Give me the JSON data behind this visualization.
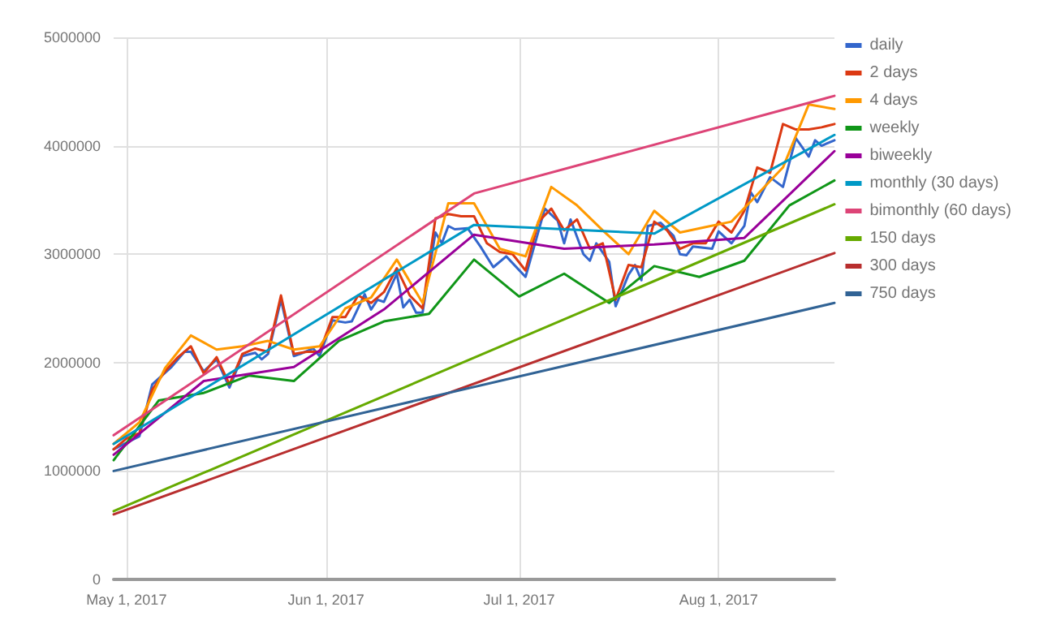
{
  "chart_data": {
    "type": "line",
    "xlim": [
      "2017-04-29",
      "2017-08-19"
    ],
    "xticks": [
      {
        "value": "2017-05-01",
        "label": "May 1, 2017"
      },
      {
        "value": "2017-06-01",
        "label": "Jun 1, 2017"
      },
      {
        "value": "2017-07-01",
        "label": "Jul 1, 2017"
      },
      {
        "value": "2017-08-01",
        "label": "Aug 1, 2017"
      }
    ],
    "ylim": [
      0,
      5000000
    ],
    "yticks": [
      0,
      1000000,
      2000000,
      3000000,
      4000000,
      5000000
    ],
    "grid": true,
    "legend": "right",
    "marker": "none",
    "line_style": "solid",
    "series": [
      {
        "name": "daily",
        "color": "#3366cc",
        "x": [
          "2017-04-29",
          "2017-05-03",
          "2017-05-05",
          "2017-05-08",
          "2017-05-10",
          "2017-05-11",
          "2017-05-13",
          "2017-05-15",
          "2017-05-17",
          "2017-05-19",
          "2017-05-21",
          "2017-05-22",
          "2017-05-23",
          "2017-05-25",
          "2017-05-27",
          "2017-05-28",
          "2017-05-30",
          "2017-05-31",
          "2017-06-02",
          "2017-06-04",
          "2017-06-05",
          "2017-06-07",
          "2017-06-08",
          "2017-06-09",
          "2017-06-10",
          "2017-06-12",
          "2017-06-13",
          "2017-06-14",
          "2017-06-15",
          "2017-06-16",
          "2017-06-18",
          "2017-06-19",
          "2017-06-20",
          "2017-06-21",
          "2017-06-23",
          "2017-06-25",
          "2017-06-27",
          "2017-06-29",
          "2017-07-02",
          "2017-07-05",
          "2017-07-07",
          "2017-07-08",
          "2017-07-09",
          "2017-07-11",
          "2017-07-12",
          "2017-07-13",
          "2017-07-15",
          "2017-07-16",
          "2017-07-18",
          "2017-07-19",
          "2017-07-20",
          "2017-07-21",
          "2017-07-23",
          "2017-07-25",
          "2017-07-26",
          "2017-07-27",
          "2017-07-28",
          "2017-07-31",
          "2017-08-01",
          "2017-08-03",
          "2017-08-05",
          "2017-08-06",
          "2017-08-07",
          "2017-08-09",
          "2017-08-11",
          "2017-08-13",
          "2017-08-15",
          "2017-08-16",
          "2017-08-17",
          "2017-08-19"
        ],
        "values": [
          1200000,
          1320000,
          1800000,
          1960000,
          2100000,
          2100000,
          1920000,
          2030000,
          1770000,
          2060000,
          2090000,
          2030000,
          2080000,
          2580000,
          2060000,
          2080000,
          2130000,
          2060000,
          2390000,
          2370000,
          2380000,
          2630000,
          2490000,
          2580000,
          2560000,
          2820000,
          2510000,
          2580000,
          2460000,
          2460000,
          3200000,
          3100000,
          3260000,
          3230000,
          3240000,
          3070000,
          2880000,
          2980000,
          2790000,
          3420000,
          3310000,
          3100000,
          3320000,
          3000000,
          2940000,
          3100000,
          2930000,
          2520000,
          2810000,
          2900000,
          2760000,
          3260000,
          3290000,
          3170000,
          3000000,
          2990000,
          3070000,
          3050000,
          3210000,
          3100000,
          3260000,
          3570000,
          3480000,
          3710000,
          3620000,
          4070000,
          3900000,
          4050000,
          4000000,
          4050000
        ]
      },
      {
        "name": "2 days",
        "color": "#dc3912",
        "x": [
          "2017-04-29",
          "2017-05-01",
          "2017-05-03",
          "2017-05-05",
          "2017-05-07",
          "2017-05-09",
          "2017-05-11",
          "2017-05-13",
          "2017-05-15",
          "2017-05-17",
          "2017-05-19",
          "2017-05-21",
          "2017-05-23",
          "2017-05-25",
          "2017-05-27",
          "2017-05-29",
          "2017-05-31",
          "2017-06-02",
          "2017-06-04",
          "2017-06-06",
          "2017-06-08",
          "2017-06-10",
          "2017-06-12",
          "2017-06-14",
          "2017-06-16",
          "2017-06-18",
          "2017-06-20",
          "2017-06-22",
          "2017-06-24",
          "2017-06-26",
          "2017-06-28",
          "2017-06-30",
          "2017-07-02",
          "2017-07-04",
          "2017-07-06",
          "2017-07-08",
          "2017-07-10",
          "2017-07-12",
          "2017-07-14",
          "2017-07-16",
          "2017-07-18",
          "2017-07-20",
          "2017-07-22",
          "2017-07-24",
          "2017-07-26",
          "2017-07-28",
          "2017-07-30",
          "2017-08-01",
          "2017-08-03",
          "2017-08-05",
          "2017-08-07",
          "2017-08-09",
          "2017-08-11",
          "2017-08-13",
          "2017-08-15",
          "2017-08-17",
          "2017-08-19"
        ],
        "values": [
          1200000,
          1300000,
          1350000,
          1750000,
          1920000,
          2050000,
          2150000,
          1900000,
          2050000,
          1800000,
          2080000,
          2130000,
          2100000,
          2620000,
          2080000,
          2100000,
          2100000,
          2420000,
          2420000,
          2620000,
          2550000,
          2650000,
          2870000,
          2620000,
          2500000,
          3330000,
          3370000,
          3350000,
          3350000,
          3100000,
          3020000,
          3000000,
          2850000,
          3300000,
          3420000,
          3220000,
          3320000,
          3050000,
          3100000,
          2580000,
          2900000,
          2880000,
          3300000,
          3220000,
          3050000,
          3100000,
          3100000,
          3300000,
          3200000,
          3400000,
          3800000,
          3750000,
          4200000,
          4150000,
          4150000,
          4170000,
          4200000
        ]
      },
      {
        "name": "4 days",
        "color": "#ff9900",
        "x": [
          "2017-04-29",
          "2017-05-03",
          "2017-05-07",
          "2017-05-11",
          "2017-05-15",
          "2017-05-19",
          "2017-05-23",
          "2017-05-27",
          "2017-05-31",
          "2017-06-04",
          "2017-06-08",
          "2017-06-12",
          "2017-06-16",
          "2017-06-20",
          "2017-06-24",
          "2017-06-28",
          "2017-07-02",
          "2017-07-06",
          "2017-07-10",
          "2017-07-14",
          "2017-07-18",
          "2017-07-22",
          "2017-07-26",
          "2017-07-30",
          "2017-08-03",
          "2017-08-07",
          "2017-08-11",
          "2017-08-15",
          "2017-08-19"
        ],
        "values": [
          1250000,
          1450000,
          1950000,
          2250000,
          2120000,
          2150000,
          2200000,
          2120000,
          2150000,
          2500000,
          2600000,
          2950000,
          2550000,
          3470000,
          3470000,
          3050000,
          2980000,
          3620000,
          3450000,
          3220000,
          3000000,
          3400000,
          3200000,
          3250000,
          3300000,
          3550000,
          3800000,
          4380000,
          4340000
        ]
      },
      {
        "name": "weekly",
        "color": "#109618",
        "x": [
          "2017-04-29",
          "2017-05-06",
          "2017-05-13",
          "2017-05-20",
          "2017-05-27",
          "2017-06-03",
          "2017-06-10",
          "2017-06-17",
          "2017-06-24",
          "2017-07-01",
          "2017-07-08",
          "2017-07-15",
          "2017-07-22",
          "2017-07-29",
          "2017-08-05",
          "2017-08-12",
          "2017-08-19"
        ],
        "values": [
          1100000,
          1650000,
          1720000,
          1880000,
          1830000,
          2200000,
          2380000,
          2450000,
          2950000,
          2610000,
          2820000,
          2550000,
          2890000,
          2790000,
          2940000,
          3450000,
          3680000
        ]
      },
      {
        "name": "biweekly",
        "color": "#990099",
        "x": [
          "2017-04-29",
          "2017-05-13",
          "2017-05-27",
          "2017-06-10",
          "2017-06-24",
          "2017-07-08",
          "2017-07-22",
          "2017-08-05",
          "2017-08-19"
        ],
        "values": [
          1150000,
          1830000,
          1960000,
          2490000,
          3180000,
          3050000,
          3090000,
          3150000,
          3950000
        ]
      },
      {
        "name": "monthly (30 days)",
        "color": "#0099c6",
        "x": [
          "2017-04-29",
          "2017-06-24",
          "2017-07-22",
          "2017-08-19"
        ],
        "values": [
          1250000,
          3270000,
          3190000,
          4100000
        ]
      },
      {
        "name": "bimonthly (60 days)",
        "color": "#dd4477",
        "x": [
          "2017-04-29",
          "2017-06-24",
          "2017-08-19"
        ],
        "values": [
          1330000,
          3560000,
          4460000
        ]
      },
      {
        "name": "150 days",
        "color": "#66aa00",
        "x": [
          "2017-04-29",
          "2017-08-19"
        ],
        "values": [
          630000,
          3460000
        ]
      },
      {
        "name": "300 days",
        "color": "#b82e2e",
        "x": [
          "2017-04-29",
          "2017-08-19"
        ],
        "values": [
          600000,
          3010000
        ]
      },
      {
        "name": "750 days",
        "color": "#316395",
        "x": [
          "2017-04-29",
          "2017-08-19"
        ],
        "values": [
          1000000,
          2550000
        ]
      }
    ]
  }
}
